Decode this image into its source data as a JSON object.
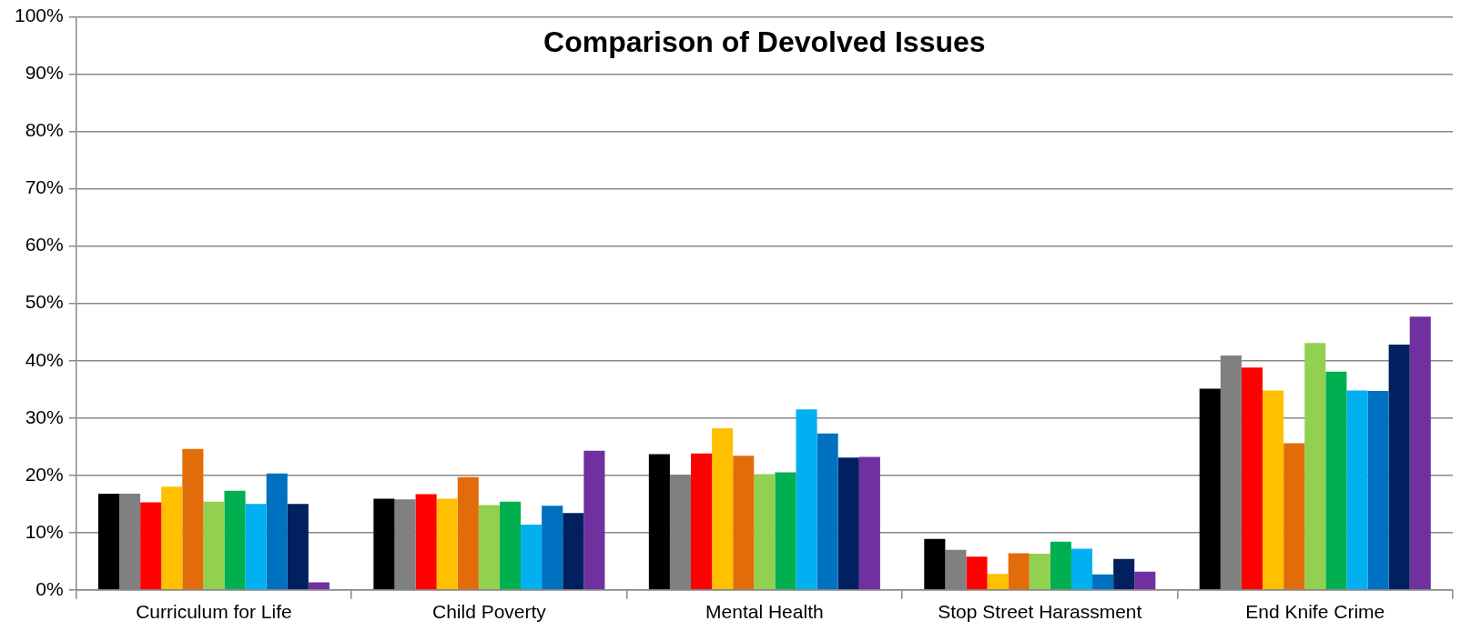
{
  "chart_data": {
    "type": "bar",
    "title": "Comparison of Devolved Issues",
    "categories": [
      "Curriculum for Life",
      "Child Poverty",
      "Mental Health",
      "Stop Street Harassment",
      "End Knife Crime"
    ],
    "series": [
      {
        "color": "#000000",
        "values": [
          16.8,
          15.9,
          23.7,
          8.9,
          35.1
        ]
      },
      {
        "color": "#808080",
        "values": [
          16.8,
          15.8,
          20.1,
          7.0,
          40.9
        ]
      },
      {
        "color": "#ff0000",
        "values": [
          15.3,
          16.7,
          23.8,
          5.8,
          38.8
        ]
      },
      {
        "color": "#ffc000",
        "values": [
          18.0,
          15.9,
          28.2,
          2.8,
          34.8
        ]
      },
      {
        "color": "#e36c0a",
        "values": [
          24.6,
          19.7,
          23.4,
          6.4,
          25.6
        ]
      },
      {
        "color": "#92d050",
        "values": [
          15.4,
          14.8,
          20.2,
          6.3,
          43.1
        ]
      },
      {
        "color": "#00b050",
        "values": [
          17.3,
          15.4,
          20.5,
          8.4,
          38.1
        ]
      },
      {
        "color": "#00b0f0",
        "values": [
          15.0,
          11.4,
          31.5,
          7.2,
          34.8
        ]
      },
      {
        "color": "#0070c0",
        "values": [
          20.3,
          14.7,
          27.3,
          2.7,
          34.7
        ]
      },
      {
        "color": "#002060",
        "values": [
          15.0,
          13.4,
          23.1,
          5.4,
          42.8
        ]
      },
      {
        "color": "#7030a0",
        "values": [
          1.3,
          24.3,
          23.2,
          3.2,
          47.7
        ]
      }
    ],
    "ylim": [
      0,
      100
    ],
    "yticks": [
      {
        "value": 0,
        "label": "0%"
      },
      {
        "value": 10,
        "label": "10%"
      },
      {
        "value": 20,
        "label": "20%"
      },
      {
        "value": 30,
        "label": "30%"
      },
      {
        "value": 40,
        "label": "40%"
      },
      {
        "value": 50,
        "label": "50%"
      },
      {
        "value": 60,
        "label": "60%"
      },
      {
        "value": 70,
        "label": "70%"
      },
      {
        "value": 80,
        "label": "80%"
      },
      {
        "value": 90,
        "label": "90%"
      },
      {
        "value": 100,
        "label": "100%"
      }
    ],
    "grid": "y",
    "legend": false
  }
}
